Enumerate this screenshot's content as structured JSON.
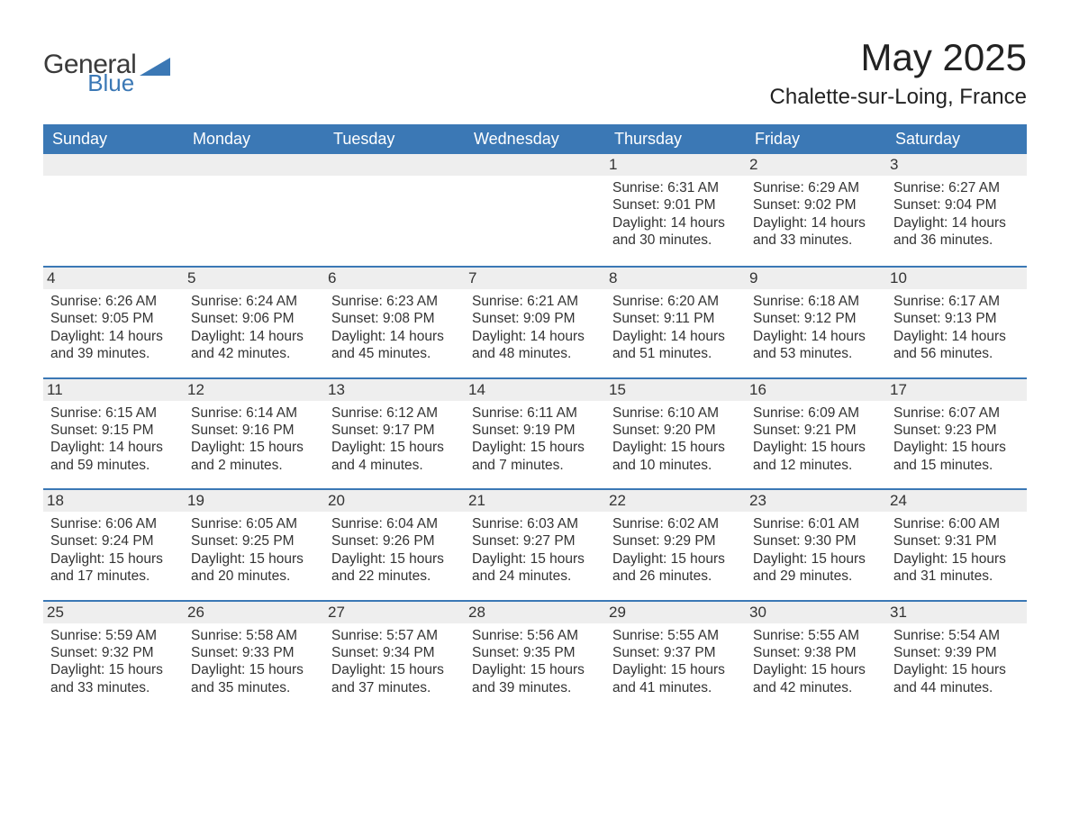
{
  "brand": {
    "line1": "General",
    "line2": "Blue",
    "text_color": "#3a3a3a",
    "accent_color": "#3b78b5"
  },
  "title": {
    "month": "May 2025",
    "location": "Chalette-sur-Loing, France"
  },
  "colors": {
    "header_bg": "#3b78b5",
    "header_text": "#ffffff",
    "daynum_bg": "#eeeeee",
    "week_border": "#3b78b5",
    "body_text": "#333333",
    "page_bg": "#ffffff"
  },
  "day_headers": [
    "Sunday",
    "Monday",
    "Tuesday",
    "Wednesday",
    "Thursday",
    "Friday",
    "Saturday"
  ],
  "weeks": [
    [
      {
        "n": "",
        "sunrise": "",
        "sunset": "",
        "daylight": ""
      },
      {
        "n": "",
        "sunrise": "",
        "sunset": "",
        "daylight": ""
      },
      {
        "n": "",
        "sunrise": "",
        "sunset": "",
        "daylight": ""
      },
      {
        "n": "",
        "sunrise": "",
        "sunset": "",
        "daylight": ""
      },
      {
        "n": "1",
        "sunrise": "Sunrise: 6:31 AM",
        "sunset": "Sunset: 9:01 PM",
        "daylight": "Daylight: 14 hours and 30 minutes."
      },
      {
        "n": "2",
        "sunrise": "Sunrise: 6:29 AM",
        "sunset": "Sunset: 9:02 PM",
        "daylight": "Daylight: 14 hours and 33 minutes."
      },
      {
        "n": "3",
        "sunrise": "Sunrise: 6:27 AM",
        "sunset": "Sunset: 9:04 PM",
        "daylight": "Daylight: 14 hours and 36 minutes."
      }
    ],
    [
      {
        "n": "4",
        "sunrise": "Sunrise: 6:26 AM",
        "sunset": "Sunset: 9:05 PM",
        "daylight": "Daylight: 14 hours and 39 minutes."
      },
      {
        "n": "5",
        "sunrise": "Sunrise: 6:24 AM",
        "sunset": "Sunset: 9:06 PM",
        "daylight": "Daylight: 14 hours and 42 minutes."
      },
      {
        "n": "6",
        "sunrise": "Sunrise: 6:23 AM",
        "sunset": "Sunset: 9:08 PM",
        "daylight": "Daylight: 14 hours and 45 minutes."
      },
      {
        "n": "7",
        "sunrise": "Sunrise: 6:21 AM",
        "sunset": "Sunset: 9:09 PM",
        "daylight": "Daylight: 14 hours and 48 minutes."
      },
      {
        "n": "8",
        "sunrise": "Sunrise: 6:20 AM",
        "sunset": "Sunset: 9:11 PM",
        "daylight": "Daylight: 14 hours and 51 minutes."
      },
      {
        "n": "9",
        "sunrise": "Sunrise: 6:18 AM",
        "sunset": "Sunset: 9:12 PM",
        "daylight": "Daylight: 14 hours and 53 minutes."
      },
      {
        "n": "10",
        "sunrise": "Sunrise: 6:17 AM",
        "sunset": "Sunset: 9:13 PM",
        "daylight": "Daylight: 14 hours and 56 minutes."
      }
    ],
    [
      {
        "n": "11",
        "sunrise": "Sunrise: 6:15 AM",
        "sunset": "Sunset: 9:15 PM",
        "daylight": "Daylight: 14 hours and 59 minutes."
      },
      {
        "n": "12",
        "sunrise": "Sunrise: 6:14 AM",
        "sunset": "Sunset: 9:16 PM",
        "daylight": "Daylight: 15 hours and 2 minutes."
      },
      {
        "n": "13",
        "sunrise": "Sunrise: 6:12 AM",
        "sunset": "Sunset: 9:17 PM",
        "daylight": "Daylight: 15 hours and 4 minutes."
      },
      {
        "n": "14",
        "sunrise": "Sunrise: 6:11 AM",
        "sunset": "Sunset: 9:19 PM",
        "daylight": "Daylight: 15 hours and 7 minutes."
      },
      {
        "n": "15",
        "sunrise": "Sunrise: 6:10 AM",
        "sunset": "Sunset: 9:20 PM",
        "daylight": "Daylight: 15 hours and 10 minutes."
      },
      {
        "n": "16",
        "sunrise": "Sunrise: 6:09 AM",
        "sunset": "Sunset: 9:21 PM",
        "daylight": "Daylight: 15 hours and 12 minutes."
      },
      {
        "n": "17",
        "sunrise": "Sunrise: 6:07 AM",
        "sunset": "Sunset: 9:23 PM",
        "daylight": "Daylight: 15 hours and 15 minutes."
      }
    ],
    [
      {
        "n": "18",
        "sunrise": "Sunrise: 6:06 AM",
        "sunset": "Sunset: 9:24 PM",
        "daylight": "Daylight: 15 hours and 17 minutes."
      },
      {
        "n": "19",
        "sunrise": "Sunrise: 6:05 AM",
        "sunset": "Sunset: 9:25 PM",
        "daylight": "Daylight: 15 hours and 20 minutes."
      },
      {
        "n": "20",
        "sunrise": "Sunrise: 6:04 AM",
        "sunset": "Sunset: 9:26 PM",
        "daylight": "Daylight: 15 hours and 22 minutes."
      },
      {
        "n": "21",
        "sunrise": "Sunrise: 6:03 AM",
        "sunset": "Sunset: 9:27 PM",
        "daylight": "Daylight: 15 hours and 24 minutes."
      },
      {
        "n": "22",
        "sunrise": "Sunrise: 6:02 AM",
        "sunset": "Sunset: 9:29 PM",
        "daylight": "Daylight: 15 hours and 26 minutes."
      },
      {
        "n": "23",
        "sunrise": "Sunrise: 6:01 AM",
        "sunset": "Sunset: 9:30 PM",
        "daylight": "Daylight: 15 hours and 29 minutes."
      },
      {
        "n": "24",
        "sunrise": "Sunrise: 6:00 AM",
        "sunset": "Sunset: 9:31 PM",
        "daylight": "Daylight: 15 hours and 31 minutes."
      }
    ],
    [
      {
        "n": "25",
        "sunrise": "Sunrise: 5:59 AM",
        "sunset": "Sunset: 9:32 PM",
        "daylight": "Daylight: 15 hours and 33 minutes."
      },
      {
        "n": "26",
        "sunrise": "Sunrise: 5:58 AM",
        "sunset": "Sunset: 9:33 PM",
        "daylight": "Daylight: 15 hours and 35 minutes."
      },
      {
        "n": "27",
        "sunrise": "Sunrise: 5:57 AM",
        "sunset": "Sunset: 9:34 PM",
        "daylight": "Daylight: 15 hours and 37 minutes."
      },
      {
        "n": "28",
        "sunrise": "Sunrise: 5:56 AM",
        "sunset": "Sunset: 9:35 PM",
        "daylight": "Daylight: 15 hours and 39 minutes."
      },
      {
        "n": "29",
        "sunrise": "Sunrise: 5:55 AM",
        "sunset": "Sunset: 9:37 PM",
        "daylight": "Daylight: 15 hours and 41 minutes."
      },
      {
        "n": "30",
        "sunrise": "Sunrise: 5:55 AM",
        "sunset": "Sunset: 9:38 PM",
        "daylight": "Daylight: 15 hours and 42 minutes."
      },
      {
        "n": "31",
        "sunrise": "Sunrise: 5:54 AM",
        "sunset": "Sunset: 9:39 PM",
        "daylight": "Daylight: 15 hours and 44 minutes."
      }
    ]
  ]
}
